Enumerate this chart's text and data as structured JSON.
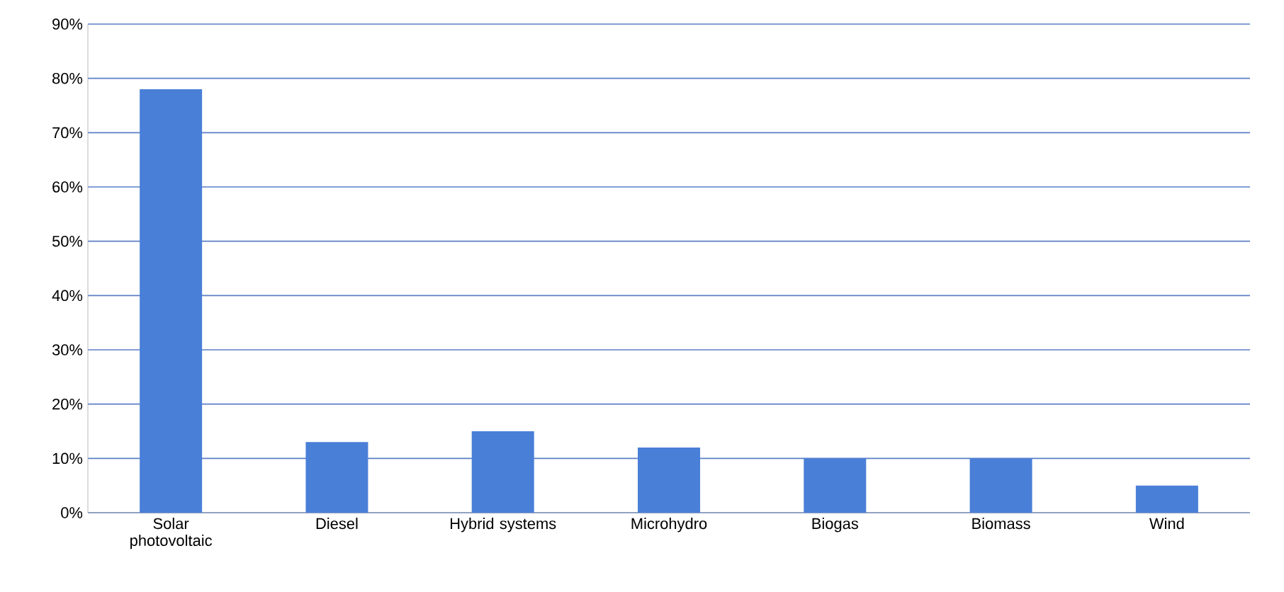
{
  "chart_data": {
    "type": "bar",
    "categories": [
      "Solar photovoltaic",
      "Diesel",
      "Hybrid systems",
      "Microhydro",
      "Biogas",
      "Biomass",
      "Wind"
    ],
    "values": [
      78,
      13,
      15,
      12,
      10,
      10,
      5
    ],
    "color": "#4a7fd8",
    "ylim": [
      0,
      90
    ],
    "yticks": [
      {
        "value": 0,
        "label": "0%"
      },
      {
        "value": 10,
        "label": "10%"
      },
      {
        "value": 20,
        "label": "20%"
      },
      {
        "value": 30,
        "label": "30%"
      },
      {
        "value": 40,
        "label": "40%"
      },
      {
        "value": 50,
        "label": "50%"
      },
      {
        "value": 60,
        "label": "60%"
      },
      {
        "value": 70,
        "label": "70%"
      },
      {
        "value": 80,
        "label": "80%"
      },
      {
        "value": 90,
        "label": "90%"
      }
    ],
    "grid": "y"
  }
}
